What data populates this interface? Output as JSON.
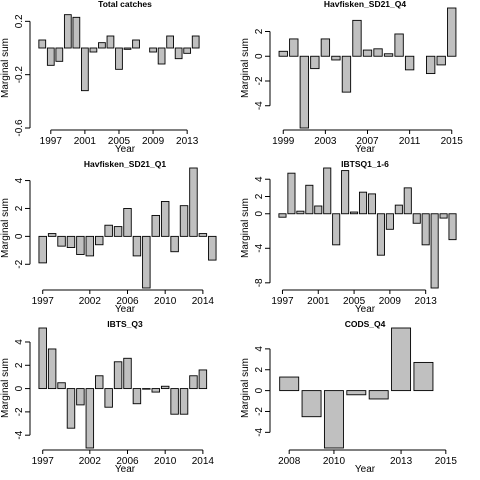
{
  "chart_data": [
    {
      "type": "bar",
      "title": "Total catches",
      "xlabel": "Year",
      "ylabel": "Marginal sum",
      "x": [
        1996,
        1997,
        1998,
        1999,
        2000,
        2001,
        2002,
        2003,
        2004,
        2005,
        2006,
        2007,
        2008,
        2009,
        2010,
        2011,
        2012,
        2013,
        2014,
        2015,
        2016
      ],
      "values": [
        0.06,
        -0.13,
        -0.1,
        0.25,
        0.23,
        -0.32,
        -0.03,
        0.04,
        0.09,
        -0.16,
        -0.01,
        0.06,
        0,
        -0.03,
        -0.12,
        0.09,
        -0.08,
        -0.04,
        0.09,
        0,
        0
      ],
      "ylim": [
        -0.6,
        0.3
      ],
      "xticks": [
        1997,
        2001,
        2005,
        2009,
        2013
      ],
      "xtick_labels": [
        "1997",
        "2001",
        "2005",
        "2009",
        "2013"
      ],
      "yticks": [
        -0.6,
        -0.2,
        0.2
      ],
      "ytick_labels": [
        "-0.6",
        "-0.2",
        "0.2"
      ]
    },
    {
      "type": "bar",
      "title": "Havfisken_SD21_Q4",
      "xlabel": "Year",
      "ylabel": "Marginal sum",
      "x": [
        1999,
        2000,
        2001,
        2002,
        2003,
        2004,
        2005,
        2006,
        2007,
        2008,
        2009,
        2010,
        2011,
        2012,
        2013,
        2014,
        2015
      ],
      "values": [
        0.4,
        1.4,
        -5.8,
        -1,
        1.4,
        -0.3,
        -2.9,
        2.9,
        0.5,
        0.6,
        0.2,
        1.8,
        -1.1,
        0,
        -1.4,
        -0.7,
        3.9
      ],
      "ylim": [
        -5.8,
        3.9
      ],
      "xticks": [
        1999,
        2003,
        2007,
        2011,
        2015
      ],
      "xtick_labels": [
        "1999",
        "2003",
        "2007",
        "2011",
        "2015"
      ],
      "yticks": [
        -4,
        -2,
        0,
        2
      ],
      "ytick_labels": [
        "-4",
        "-2",
        "0",
        "2"
      ]
    },
    {
      "type": "bar",
      "title": "Havfisken_SD21_Q1",
      "xlabel": "Year",
      "ylabel": "Marginal sum",
      "x": [
        1997,
        1998,
        1999,
        2000,
        2001,
        2002,
        2003,
        2004,
        2005,
        2006,
        2007,
        2008,
        2009,
        2010,
        2011,
        2012,
        2013,
        2014,
        2015
      ],
      "values": [
        -1.9,
        0.2,
        -0.7,
        -0.8,
        -1.3,
        -1.4,
        -0.6,
        0.8,
        0.7,
        2,
        -1.4,
        -3.7,
        1.5,
        2.5,
        -1.1,
        2.2,
        4.9,
        0.2,
        -1.7
      ],
      "ylim": [
        -3.7,
        4.9
      ],
      "xticks": [
        1997,
        2002,
        2006,
        2010,
        2014
      ],
      "xtick_labels": [
        "1997",
        "2002",
        "2006",
        "2010",
        "2014"
      ],
      "yticks": [
        -2,
        0,
        2,
        4
      ],
      "ytick_labels": [
        "-2",
        "0",
        "2",
        "4"
      ]
    },
    {
      "type": "bar",
      "title": "IBTSQ1_1-6",
      "xlabel": "Year",
      "ylabel": "Marginal sum",
      "x": [
        1997,
        1998,
        1999,
        2000,
        2001,
        2002,
        2003,
        2004,
        2005,
        2006,
        2007,
        2008,
        2009,
        2010,
        2011,
        2012,
        2013,
        2014,
        2015,
        2016
      ],
      "values": [
        -0.4,
        4.7,
        0.3,
        3.3,
        0.9,
        5.3,
        -3.6,
        5,
        0.2,
        2.5,
        2.3,
        -4.8,
        -1.8,
        1,
        3,
        -1.1,
        -3.6,
        -8.6,
        -0.5,
        -3
      ],
      "ylim": [
        -8.6,
        5.3
      ],
      "xticks": [
        1997,
        2001,
        2005,
        2009,
        2013
      ],
      "xtick_labels": [
        "1997",
        "2001",
        "2005",
        "2009",
        "2013"
      ],
      "yticks": [
        -8,
        -4,
        0,
        2,
        4
      ],
      "ytick_labels": [
        "-8",
        "-4",
        "0",
        "2",
        "4"
      ]
    },
    {
      "type": "bar",
      "title": "IBTS_Q3",
      "xlabel": "Year",
      "ylabel": "Marginal sum",
      "x": [
        1997,
        1998,
        1999,
        2000,
        2001,
        2002,
        2003,
        2004,
        2005,
        2006,
        2007,
        2008,
        2009,
        2010,
        2011,
        2012,
        2013,
        2014,
        2015
      ],
      "values": [
        5.2,
        3.4,
        0.5,
        -3.4,
        -1.4,
        -5.1,
        1.1,
        -1.6,
        2.3,
        2.6,
        -1.3,
        -0.05,
        -0.3,
        0.2,
        -2.2,
        -2.2,
        1.1,
        1.6,
        0
      ],
      "ylim": [
        -5.1,
        5.2
      ],
      "xticks": [
        1997,
        2002,
        2006,
        2010,
        2014
      ],
      "xtick_labels": [
        "1997",
        "2002",
        "2006",
        "2010",
        "2014"
      ],
      "yticks": [
        -4,
        -2,
        0,
        2,
        4
      ],
      "ytick_labels": [
        "-4",
        "-2",
        "0",
        "2",
        "4"
      ]
    },
    {
      "type": "bar",
      "title": "CODS_Q4",
      "xlabel": "Year",
      "ylabel": "Marginal sum",
      "x": [
        2008,
        2009,
        2010,
        2011,
        2012,
        2013,
        2014,
        2015
      ],
      "values": [
        1.3,
        -2.5,
        -5.5,
        -0.4,
        -0.8,
        6,
        2.7,
        0
      ],
      "ylim": [
        -5.5,
        6
      ],
      "xticks": [
        2008,
        2010,
        2013,
        2015
      ],
      "xtick_labels": [
        "2008",
        "2010",
        "2013",
        "2015"
      ],
      "yticks": [
        -4,
        -2,
        0,
        2,
        4
      ],
      "ytick_labels": [
        "-4",
        "-2",
        "0",
        "2",
        "4"
      ]
    }
  ],
  "style": {
    "bar_fill": "#c0c0c0",
    "bar_stroke": "#000000",
    "axis_color": "#000000"
  }
}
